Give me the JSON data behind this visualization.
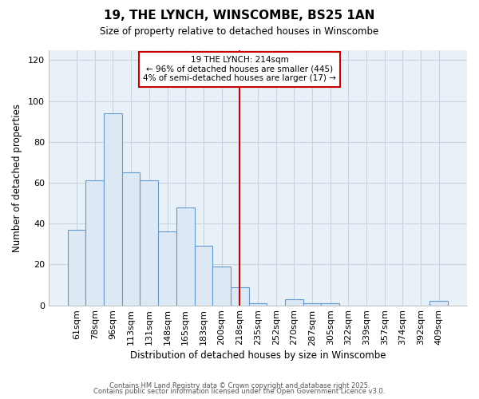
{
  "title": "19, THE LYNCH, WINSCOMBE, BS25 1AN",
  "subtitle": "Size of property relative to detached houses in Winscombe",
  "xlabel": "Distribution of detached houses by size in Winscombe",
  "ylabel": "Number of detached properties",
  "annotation_title": "19 THE LYNCH: 214sqm",
  "annotation_line1": "← 96% of detached houses are smaller (445)",
  "annotation_line2": "4% of semi-detached houses are larger (17) →",
  "categories": [
    "61sqm",
    "78sqm",
    "96sqm",
    "113sqm",
    "131sqm",
    "148sqm",
    "165sqm",
    "183sqm",
    "200sqm",
    "218sqm",
    "235sqm",
    "252sqm",
    "270sqm",
    "287sqm",
    "305sqm",
    "322sqm",
    "339sqm",
    "357sqm",
    "374sqm",
    "392sqm",
    "409sqm"
  ],
  "values": [
    37,
    61,
    94,
    65,
    61,
    36,
    48,
    29,
    19,
    9,
    1,
    0,
    3,
    1,
    1,
    0,
    0,
    0,
    0,
    0,
    2
  ],
  "bar_fill": "#dce9f5",
  "bar_edge": "#6699cc",
  "vline_color": "#cc0000",
  "annotation_box_fill": "#ffffff",
  "annotation_box_edge": "#cc0000",
  "plot_bg": "#e8f0f8",
  "fig_bg": "#ffffff",
  "grid_color": "#c8d4e0",
  "ylim": [
    0,
    125
  ],
  "yticks": [
    0,
    20,
    40,
    60,
    80,
    100,
    120
  ],
  "footer1": "Contains HM Land Registry data © Crown copyright and database right 2025.",
  "footer2": "Contains public sector information licensed under the Open Government Licence v3.0."
}
